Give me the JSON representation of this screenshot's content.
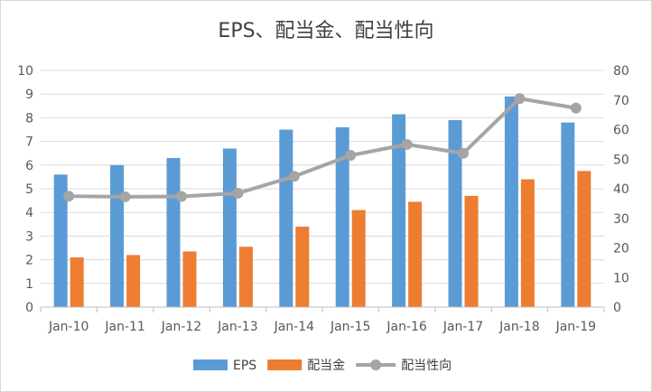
{
  "chart_data": {
    "type": "bar",
    "title": "EPS、配当金、配当性向",
    "categories": [
      "Jan-10",
      "Jan-11",
      "Jan-12",
      "Jan-13",
      "Jan-14",
      "Jan-15",
      "Jan-16",
      "Jan-17",
      "Jan-18",
      "Jan-19"
    ],
    "series": [
      {
        "name": "EPS",
        "type": "bar",
        "axis": "left",
        "color": "#5b9bd5",
        "values": [
          5.6,
          6.0,
          6.3,
          6.7,
          7.5,
          7.6,
          8.15,
          7.9,
          8.9,
          7.8
        ]
      },
      {
        "name": "配当金",
        "type": "bar",
        "axis": "left",
        "color": "#ed7d31",
        "values": [
          2.1,
          2.2,
          2.35,
          2.55,
          3.4,
          4.1,
          4.45,
          4.7,
          5.4,
          5.75
        ]
      },
      {
        "name": "配当性向",
        "type": "line",
        "axis": "right",
        "color": "#a5a5a5",
        "values": [
          37.5,
          37.3,
          37.4,
          38.5,
          44.2,
          51.3,
          55.0,
          52.0,
          70.5,
          67.3
        ]
      }
    ],
    "left_axis": {
      "min": 0,
      "max": 10,
      "step": 1,
      "ticks": [
        "0",
        "1",
        "2",
        "3",
        "4",
        "5",
        "6",
        "7",
        "8",
        "9",
        "10"
      ]
    },
    "right_axis": {
      "min": 0,
      "max": 80,
      "step": 10,
      "ticks": [
        "0",
        "10",
        "20",
        "30",
        "40",
        "50",
        "60",
        "70",
        "80"
      ]
    },
    "grid": true,
    "legend_position": "bottom"
  }
}
